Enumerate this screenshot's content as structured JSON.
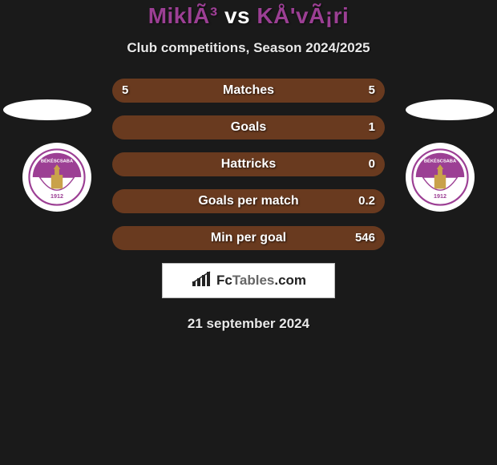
{
  "header": {
    "title_parts": [
      {
        "text": "MiklÃ³",
        "color": "#9c3f94"
      },
      {
        "text": " vs ",
        "color": "#ffffff"
      },
      {
        "text": "KÅ'vÃ¡ri",
        "color": "#9c3f94"
      }
    ],
    "subtitle": "Club competitions, Season 2024/2025"
  },
  "stats": {
    "row_bg": "#693a1f",
    "label_color": "#ffffff",
    "rows": [
      {
        "label": "Matches",
        "left": "5",
        "right": "5"
      },
      {
        "label": "Goals",
        "left": "",
        "right": "1"
      },
      {
        "label": "Hattricks",
        "left": "",
        "right": "0"
      },
      {
        "label": "Goals per match",
        "left": "",
        "right": "0.2"
      },
      {
        "label": "Min per goal",
        "left": "",
        "right": "546"
      }
    ]
  },
  "badge": {
    "primary_color": "#9c3f94",
    "text_top": "BÉKÉSCSABA",
    "text_year": "1912",
    "text_right": "1912 ELŐRE SE",
    "building_color": "#c9a24a"
  },
  "footer": {
    "logo_text_a": "Fc",
    "logo_text_b": "Tables",
    "logo_text_c": ".com",
    "date": "21 september 2024"
  },
  "colors": {
    "page_bg": "#1a1a1a",
    "accent": "#9c3f94",
    "ellipse": "#ffffff"
  }
}
